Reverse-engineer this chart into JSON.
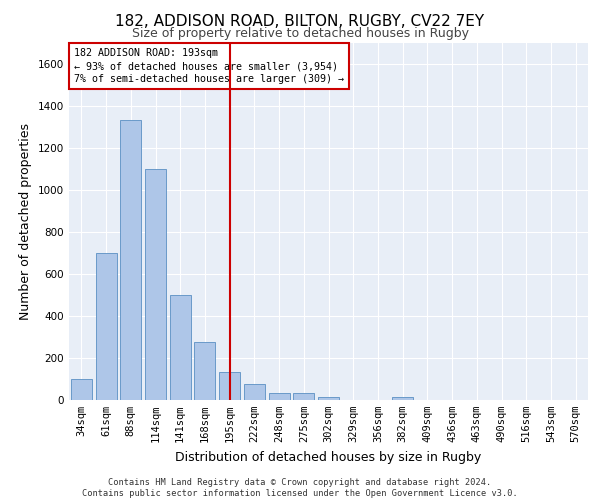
{
  "title1": "182, ADDISON ROAD, BILTON, RUGBY, CV22 7EY",
  "title2": "Size of property relative to detached houses in Rugby",
  "xlabel": "Distribution of detached houses by size in Rugby",
  "ylabel": "Number of detached properties",
  "footer1": "Contains HM Land Registry data © Crown copyright and database right 2024.",
  "footer2": "Contains public sector information licensed under the Open Government Licence v3.0.",
  "categories": [
    "34sqm",
    "61sqm",
    "88sqm",
    "114sqm",
    "141sqm",
    "168sqm",
    "195sqm",
    "222sqm",
    "248sqm",
    "275sqm",
    "302sqm",
    "329sqm",
    "356sqm",
    "382sqm",
    "409sqm",
    "436sqm",
    "463sqm",
    "490sqm",
    "516sqm",
    "543sqm",
    "570sqm"
  ],
  "values": [
    100,
    700,
    1330,
    1100,
    500,
    275,
    135,
    75,
    35,
    35,
    15,
    0,
    0,
    15,
    0,
    0,
    0,
    0,
    0,
    0,
    0
  ],
  "bar_color": "#aec6e8",
  "bar_edge_color": "#5a8fc3",
  "highlight_index": 6,
  "red_line_color": "#cc0000",
  "ylim": [
    0,
    1700
  ],
  "yticks": [
    0,
    200,
    400,
    600,
    800,
    1000,
    1200,
    1400,
    1600
  ],
  "annotation_title": "182 ADDISON ROAD: 193sqm",
  "annotation_line1": "← 93% of detached houses are smaller (3,954)",
  "annotation_line2": "7% of semi-detached houses are larger (309) →",
  "annotation_box_color": "#ffffff",
  "annotation_box_edge": "#cc0000",
  "bg_color": "#e8eef7",
  "grid_color": "#ffffff",
  "title1_fontsize": 11,
  "title2_fontsize": 9,
  "tick_fontsize": 7.5,
  "ylabel_fontsize": 9,
  "xlabel_fontsize": 9,
  "footer_fontsize": 6.2
}
